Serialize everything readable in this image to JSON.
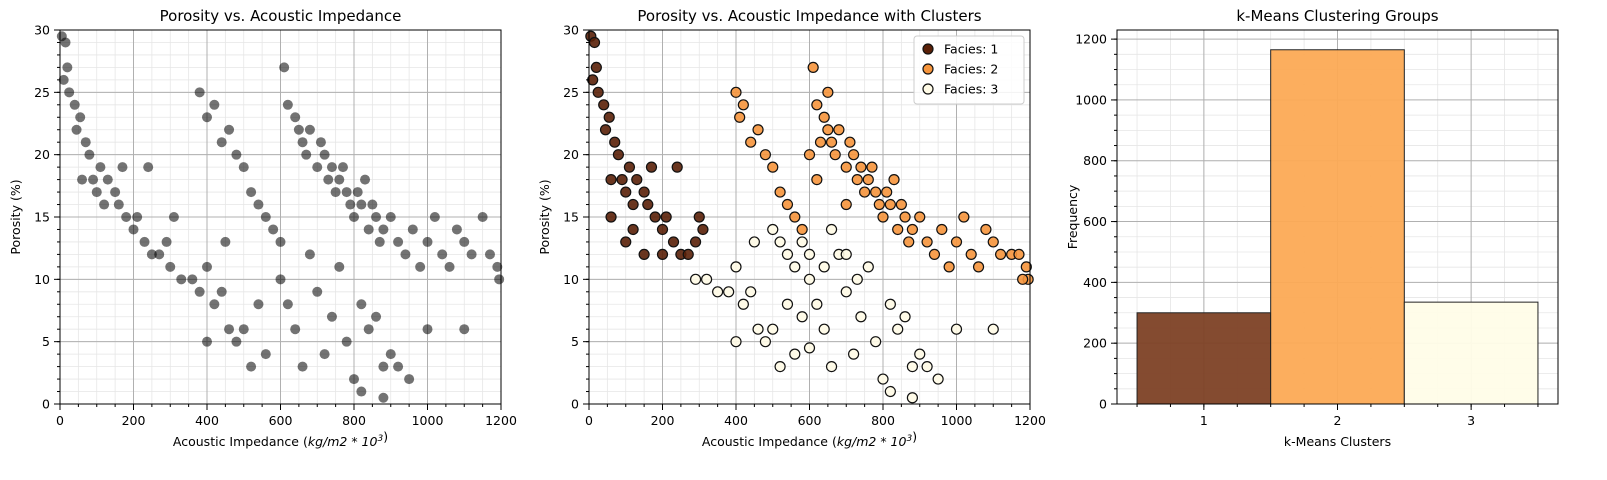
{
  "chart_data": [
    {
      "type": "scatter",
      "title": "Porosity vs. Acoustic Impedance",
      "xlabel": "Acoustic Impedance (kg/m2 * 10^3)",
      "ylabel": "Porosity (%)",
      "xlim": [
        0,
        1200
      ],
      "ylim": [
        0,
        30
      ],
      "xticks": [
        "0",
        "200",
        "400",
        "600",
        "800",
        "1000",
        "1200"
      ],
      "yticks": [
        "0",
        "5",
        "10",
        "15",
        "20",
        "25",
        "30"
      ],
      "grid": true,
      "marker_color": "#000000",
      "series": [
        {
          "points": [
            [
              5,
              29.5
            ],
            [
              15,
              29
            ],
            [
              10,
              26
            ],
            [
              20,
              27
            ],
            [
              25,
              25
            ],
            [
              40,
              24
            ],
            [
              45,
              22
            ],
            [
              55,
              23
            ],
            [
              70,
              21
            ],
            [
              80,
              20
            ],
            [
              60,
              18
            ],
            [
              90,
              18
            ],
            [
              100,
              17
            ],
            [
              110,
              19
            ],
            [
              120,
              16
            ],
            [
              130,
              18
            ],
            [
              150,
              17
            ],
            [
              160,
              16
            ],
            [
              170,
              19
            ],
            [
              180,
              15
            ],
            [
              200,
              14
            ],
            [
              210,
              15
            ],
            [
              230,
              13
            ],
            [
              240,
              19
            ],
            [
              250,
              12
            ],
            [
              270,
              12
            ],
            [
              290,
              13
            ],
            [
              300,
              11
            ],
            [
              310,
              15
            ],
            [
              330,
              10
            ],
            [
              360,
              10
            ],
            [
              380,
              9
            ],
            [
              400,
              11
            ],
            [
              420,
              8
            ],
            [
              440,
              9
            ],
            [
              450,
              13
            ],
            [
              460,
              6
            ],
            [
              480,
              5
            ],
            [
              500,
              6
            ],
            [
              520,
              3
            ],
            [
              540,
              8
            ],
            [
              560,
              4
            ],
            [
              400,
              5
            ],
            [
              380,
              25
            ],
            [
              400,
              23
            ],
            [
              420,
              24
            ],
            [
              440,
              21
            ],
            [
              460,
              22
            ],
            [
              480,
              20
            ],
            [
              500,
              19
            ],
            [
              520,
              17
            ],
            [
              540,
              16
            ],
            [
              560,
              15
            ],
            [
              580,
              14
            ],
            [
              600,
              13
            ],
            [
              610,
              27
            ],
            [
              620,
              24
            ],
            [
              640,
              23
            ],
            [
              650,
              22
            ],
            [
              660,
              21
            ],
            [
              670,
              20
            ],
            [
              680,
              22
            ],
            [
              700,
              19
            ],
            [
              710,
              21
            ],
            [
              720,
              20
            ],
            [
              730,
              18
            ],
            [
              740,
              19
            ],
            [
              750,
              17
            ],
            [
              760,
              18
            ],
            [
              770,
              19
            ],
            [
              780,
              17
            ],
            [
              790,
              16
            ],
            [
              800,
              15
            ],
            [
              810,
              17
            ],
            [
              820,
              16
            ],
            [
              830,
              18
            ],
            [
              840,
              14
            ],
            [
              850,
              16
            ],
            [
              860,
              15
            ],
            [
              870,
              13
            ],
            [
              880,
              14
            ],
            [
              900,
              15
            ],
            [
              920,
              13
            ],
            [
              940,
              12
            ],
            [
              960,
              14
            ],
            [
              980,
              11
            ],
            [
              1000,
              13
            ],
            [
              1020,
              15
            ],
            [
              1040,
              12
            ],
            [
              1060,
              11
            ],
            [
              1080,
              14
            ],
            [
              1100,
              13
            ],
            [
              1120,
              12
            ],
            [
              1150,
              15
            ],
            [
              1170,
              12
            ],
            [
              1190,
              11
            ],
            [
              1195,
              10
            ],
            [
              600,
              10
            ],
            [
              620,
              8
            ],
            [
              640,
              6
            ],
            [
              660,
              3
            ],
            [
              680,
              12
            ],
            [
              700,
              9
            ],
            [
              720,
              4
            ],
            [
              740,
              7
            ],
            [
              760,
              11
            ],
            [
              780,
              5
            ],
            [
              800,
              2
            ],
            [
              820,
              8
            ],
            [
              840,
              6
            ],
            [
              860,
              7
            ],
            [
              880,
              3
            ],
            [
              900,
              4
            ],
            [
              920,
              3
            ],
            [
              950,
              2
            ],
            [
              880,
              0.5
            ],
            [
              820,
              1
            ],
            [
              1000,
              6
            ],
            [
              1100,
              6
            ]
          ]
        }
      ]
    },
    {
      "type": "scatter",
      "title": "Porosity vs. Acoustic Impedance with Clusters",
      "xlabel": "Acoustic Impedance (kg/m2 * 10^3)",
      "ylabel": "Porosity (%)",
      "xlim": [
        0,
        1200
      ],
      "ylim": [
        0,
        30
      ],
      "xticks": [
        "0",
        "200",
        "400",
        "600",
        "800",
        "1000",
        "1200"
      ],
      "yticks": [
        "0",
        "5",
        "10",
        "15",
        "20",
        "25",
        "30"
      ],
      "grid": true,
      "legend_position": "top-right",
      "series": [
        {
          "name": "Facies: 1",
          "color": "#5a2008",
          "points": [
            [
              5,
              29.5
            ],
            [
              15,
              29
            ],
            [
              10,
              26
            ],
            [
              20,
              27
            ],
            [
              25,
              25
            ],
            [
              40,
              24
            ],
            [
              45,
              22
            ],
            [
              55,
              23
            ],
            [
              70,
              21
            ],
            [
              80,
              20
            ],
            [
              60,
              18
            ],
            [
              90,
              18
            ],
            [
              100,
              17
            ],
            [
              110,
              19
            ],
            [
              120,
              16
            ],
            [
              130,
              18
            ],
            [
              150,
              17
            ],
            [
              160,
              16
            ],
            [
              170,
              19
            ],
            [
              180,
              15
            ],
            [
              200,
              14
            ],
            [
              210,
              15
            ],
            [
              230,
              13
            ],
            [
              240,
              19
            ],
            [
              250,
              12
            ],
            [
              270,
              12
            ],
            [
              290,
              13
            ],
            [
              300,
              15
            ],
            [
              310,
              14
            ],
            [
              100,
              13
            ],
            [
              150,
              12
            ],
            [
              200,
              12
            ],
            [
              120,
              14
            ],
            [
              60,
              15
            ]
          ]
        },
        {
          "name": "Facies: 2",
          "color": "#f6953c",
          "points": [
            [
              400,
              25
            ],
            [
              410,
              23
            ],
            [
              420,
              24
            ],
            [
              440,
              21
            ],
            [
              460,
              22
            ],
            [
              480,
              20
            ],
            [
              500,
              19
            ],
            [
              520,
              17
            ],
            [
              540,
              16
            ],
            [
              560,
              15
            ],
            [
              580,
              14
            ],
            [
              610,
              27
            ],
            [
              620,
              24
            ],
            [
              640,
              23
            ],
            [
              650,
              22
            ],
            [
              660,
              21
            ],
            [
              670,
              20
            ],
            [
              680,
              22
            ],
            [
              700,
              19
            ],
            [
              710,
              21
            ],
            [
              720,
              20
            ],
            [
              730,
              18
            ],
            [
              740,
              19
            ],
            [
              750,
              17
            ],
            [
              760,
              18
            ],
            [
              770,
              19
            ],
            [
              780,
              17
            ],
            [
              790,
              16
            ],
            [
              800,
              15
            ],
            [
              810,
              17
            ],
            [
              820,
              16
            ],
            [
              830,
              18
            ],
            [
              840,
              14
            ],
            [
              850,
              16
            ],
            [
              860,
              15
            ],
            [
              870,
              13
            ],
            [
              880,
              14
            ],
            [
              900,
              15
            ],
            [
              920,
              13
            ],
            [
              940,
              12
            ],
            [
              960,
              14
            ],
            [
              980,
              11
            ],
            [
              1000,
              13
            ],
            [
              1020,
              15
            ],
            [
              1040,
              12
            ],
            [
              1060,
              11
            ],
            [
              1080,
              14
            ],
            [
              1100,
              13
            ],
            [
              1120,
              12
            ],
            [
              1150,
              12
            ],
            [
              1170,
              12
            ],
            [
              1190,
              11
            ],
            [
              1195,
              10
            ],
            [
              1180,
              10
            ],
            [
              600,
              20
            ],
            [
              620,
              18
            ],
            [
              700,
              16
            ],
            [
              650,
              25
            ],
            [
              630,
              21
            ]
          ]
        },
        {
          "name": "Facies: 3",
          "color": "#fffbe6",
          "points": [
            [
              290,
              10
            ],
            [
              320,
              10
            ],
            [
              350,
              9
            ],
            [
              380,
              9
            ],
            [
              400,
              11
            ],
            [
              420,
              8
            ],
            [
              440,
              9
            ],
            [
              450,
              13
            ],
            [
              460,
              6
            ],
            [
              480,
              5
            ],
            [
              500,
              6
            ],
            [
              520,
              3
            ],
            [
              540,
              8
            ],
            [
              560,
              4
            ],
            [
              400,
              5
            ],
            [
              500,
              14
            ],
            [
              520,
              13
            ],
            [
              540,
              12
            ],
            [
              560,
              11
            ],
            [
              580,
              13
            ],
            [
              600,
              10
            ],
            [
              620,
              8
            ],
            [
              640,
              6
            ],
            [
              660,
              3
            ],
            [
              680,
              12
            ],
            [
              700,
              9
            ],
            [
              720,
              4
            ],
            [
              740,
              7
            ],
            [
              760,
              11
            ],
            [
              780,
              5
            ],
            [
              800,
              2
            ],
            [
              820,
              8
            ],
            [
              840,
              6
            ],
            [
              860,
              7
            ],
            [
              880,
              3
            ],
            [
              900,
              4
            ],
            [
              920,
              3
            ],
            [
              950,
              2
            ],
            [
              880,
              0.5
            ],
            [
              820,
              1
            ],
            [
              1000,
              6
            ],
            [
              1100,
              6
            ],
            [
              600,
              12
            ],
            [
              640,
              11
            ],
            [
              660,
              14
            ],
            [
              700,
              12
            ],
            [
              730,
              10
            ],
            [
              580,
              7
            ],
            [
              600,
              4.5
            ]
          ]
        }
      ]
    },
    {
      "type": "bar",
      "title": "k-Means Clustering Groups",
      "xlabel": "k-Means Clusters",
      "ylabel": "Frequency",
      "categories": [
        "1",
        "2",
        "3"
      ],
      "values": [
        300,
        1165,
        335
      ],
      "colors": [
        "#7d4125",
        "#fcaa55",
        "#fffde8"
      ],
      "ylim": [
        0,
        1230
      ],
      "yticks": [
        "0",
        "200",
        "400",
        "600",
        "800",
        "1000",
        "1200"
      ],
      "grid": true
    }
  ]
}
